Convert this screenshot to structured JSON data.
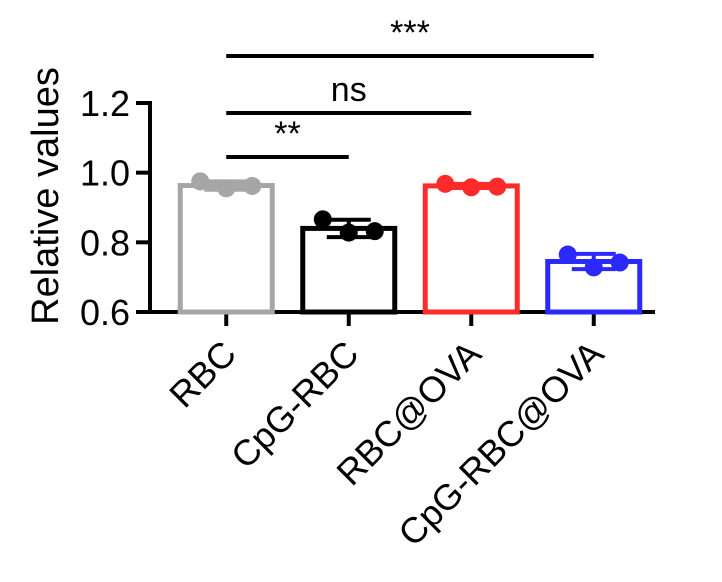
{
  "chart_data": {
    "type": "bar",
    "title": "",
    "xlabel": "",
    "ylabel": "Relative values",
    "ylim": [
      0.6,
      1.2
    ],
    "yticks": [
      0.6,
      0.8,
      1.0,
      1.2
    ],
    "ytick_labels": [
      "0.6",
      "0.8",
      "1.0",
      "1.2"
    ],
    "grid": false,
    "categories": [
      "RBC",
      "CpG-RBC",
      "RBC@OVA",
      "CpG-RBC@OVA"
    ],
    "values": [
      0.963,
      0.84,
      0.962,
      0.745
    ],
    "errors": [
      0.012,
      0.025,
      0.006,
      0.022
    ],
    "points": [
      [
        0.975,
        0.955,
        0.962
      ],
      [
        0.866,
        0.828,
        0.832
      ],
      [
        0.968,
        0.958,
        0.96
      ],
      [
        0.765,
        0.728,
        0.742
      ]
    ],
    "colors": [
      "#a6a6a6",
      "#000000",
      "#ff2a2a",
      "#2a2aff"
    ],
    "significance": [
      {
        "from": 0,
        "to": 1,
        "label": "**"
      },
      {
        "from": 0,
        "to": 2,
        "label": "ns"
      },
      {
        "from": 0,
        "to": 3,
        "label": "***"
      }
    ]
  }
}
